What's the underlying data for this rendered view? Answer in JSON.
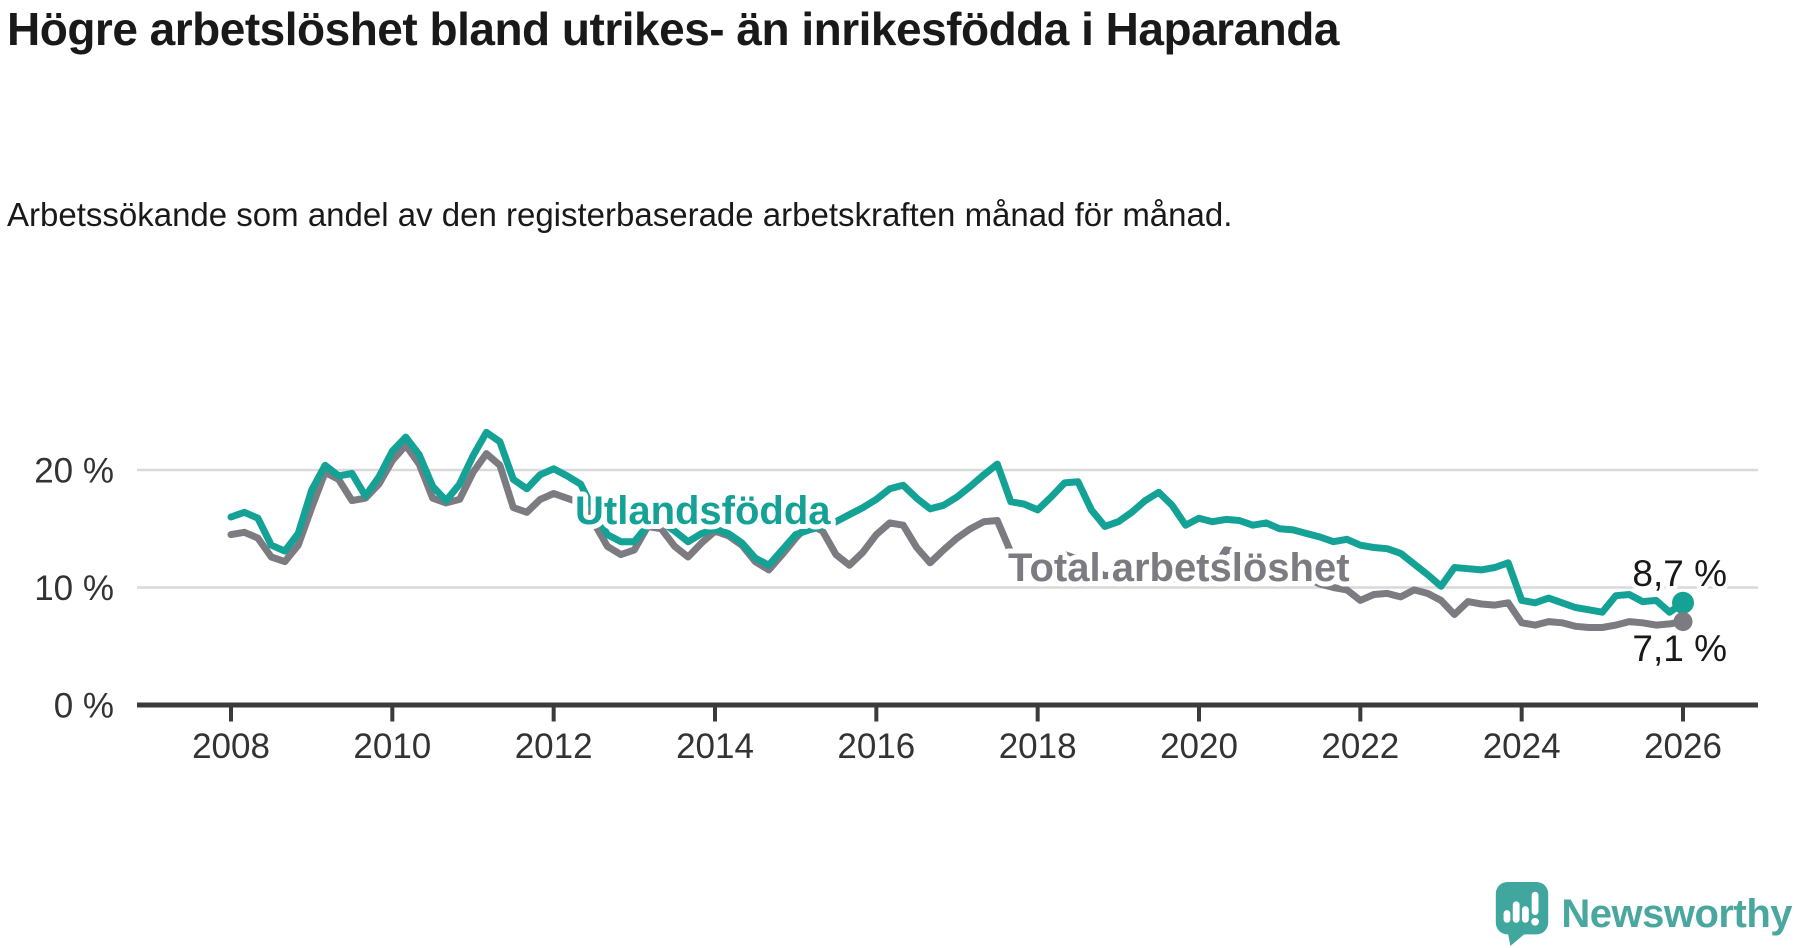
{
  "header": {
    "title": "Högre arbetslöshet bland utrikes- än inrikesfödda i Haparanda",
    "subtitle": "Arbetssökande som andel av den registerbaserade arbetskraften månad för månad."
  },
  "branding": {
    "logo_text": "Newsworthy",
    "logo_icon": "bar-chart-speech-bubble-icon",
    "logo_icon_color": "#41a69d",
    "logo_text_color": "#4aa79f"
  },
  "chart_data": {
    "type": "line",
    "title": "Högre arbetslöshet bland utrikes- än inrikesfödda i Haparanda",
    "subtitle": "Arbetssökande som andel av den registerbaserade arbetskraften månad för månad.",
    "xlabel": "",
    "ylabel": "",
    "grid": "horizontal",
    "legend_position": "inline-labels-on-lines",
    "x_unit": "year",
    "x_start": 2008.0,
    "x_end": 2026.0,
    "x_sampling": "every 2 months, Jan 2008 - Jan 2026",
    "x_ticks": [
      2008,
      2010,
      2012,
      2014,
      2016,
      2018,
      2020,
      2022,
      2024,
      2026
    ],
    "y_ticks": [
      {
        "value": 0,
        "label": "0 %"
      },
      {
        "value": 10,
        "label": "10 %"
      },
      {
        "value": 20,
        "label": "20 %"
      }
    ],
    "ylim": [
      0,
      24
    ],
    "colors": {
      "grid": "#d9d9d9",
      "axis": "#3b3b3b",
      "tick_text": "#333333",
      "end_label_text": "#191919"
    },
    "series": [
      {
        "name": "Utlandsfödda",
        "color": "#15a296",
        "end_label": "8,7 %",
        "end_value": 8.7,
        "values": [
          16.0,
          16.4,
          15.9,
          13.6,
          13.1,
          14.6,
          18.3,
          20.4,
          19.5,
          19.7,
          17.8,
          19.4,
          21.6,
          22.8,
          21.3,
          18.6,
          17.4,
          18.8,
          21.2,
          23.2,
          22.4,
          19.2,
          18.4,
          19.6,
          20.1,
          19.5,
          18.8,
          16.5,
          14.5,
          13.9,
          13.9,
          15.3,
          15.6,
          14.8,
          13.9,
          14.6,
          15.0,
          14.6,
          13.8,
          12.5,
          11.9,
          13.2,
          14.5,
          14.9,
          15.2,
          15.6,
          16.2,
          16.8,
          17.5,
          18.4,
          18.7,
          17.6,
          16.7,
          17.0,
          17.7,
          18.6,
          19.6,
          20.5,
          17.3,
          17.1,
          16.6,
          17.7,
          18.9,
          19.0,
          16.6,
          15.2,
          15.6,
          16.4,
          17.4,
          18.1,
          17.0,
          15.3,
          15.9,
          15.6,
          15.8,
          15.7,
          15.3,
          15.5,
          15.0,
          14.9,
          14.6,
          14.3,
          13.9,
          14.1,
          13.6,
          13.4,
          13.3,
          12.9,
          12.0,
          11.1,
          10.1,
          11.7,
          11.6,
          11.5,
          11.7,
          12.1,
          8.9,
          8.7,
          9.1,
          8.7,
          8.3,
          8.1,
          7.9,
          9.3,
          9.4,
          8.8,
          8.9,
          7.9,
          8.7
        ]
      },
      {
        "name": "Total arbetslöshet",
        "color": "#7b7b81",
        "end_label": "7,1 %",
        "end_value": 7.1,
        "values": [
          14.5,
          14.7,
          14.2,
          12.6,
          12.2,
          13.6,
          16.8,
          19.8,
          19.2,
          17.4,
          17.6,
          18.8,
          20.8,
          22.1,
          20.5,
          17.6,
          17.2,
          17.5,
          19.8,
          21.4,
          20.4,
          16.8,
          16.4,
          17.5,
          18.0,
          17.6,
          17.2,
          15.5,
          13.5,
          12.8,
          13.2,
          15.2,
          15.0,
          13.5,
          12.6,
          13.8,
          14.8,
          14.4,
          13.6,
          12.2,
          11.5,
          12.8,
          14.2,
          15.4,
          14.8,
          12.8,
          11.9,
          13.0,
          14.5,
          15.5,
          15.3,
          13.4,
          12.1,
          13.2,
          14.2,
          15.0,
          15.6,
          15.7,
          13.0,
          11.4,
          11.6,
          12.3,
          12.8,
          12.4,
          11.6,
          11.0,
          11.2,
          11.6,
          11.9,
          11.5,
          10.8,
          10.5,
          10.9,
          11.4,
          13.2,
          13.0,
          12.4,
          12.0,
          11.8,
          11.3,
          10.8,
          10.3,
          10.0,
          9.8,
          8.9,
          9.4,
          9.5,
          9.2,
          9.8,
          9.5,
          8.9,
          7.7,
          8.8,
          8.6,
          8.5,
          8.7,
          7.0,
          6.8,
          7.1,
          7.0,
          6.7,
          6.6,
          6.6,
          6.8,
          7.1,
          7.0,
          6.8,
          6.9,
          7.1
        ]
      }
    ]
  }
}
